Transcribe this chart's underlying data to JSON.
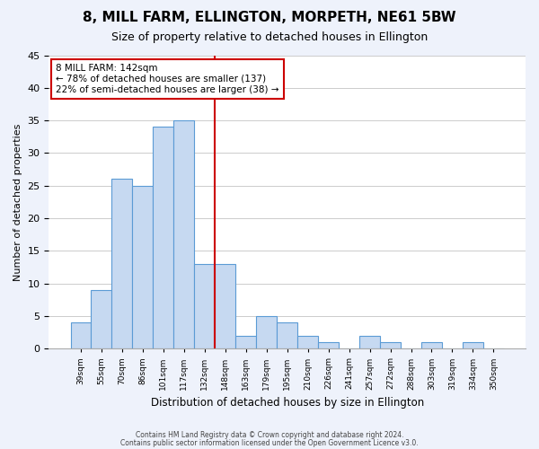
{
  "title": "8, MILL FARM, ELLINGTON, MORPETH, NE61 5BW",
  "subtitle": "Size of property relative to detached houses in Ellington",
  "xlabel": "Distribution of detached houses by size in Ellington",
  "ylabel": "Number of detached properties",
  "bar_labels": [
    "39sqm",
    "55sqm",
    "70sqm",
    "86sqm",
    "101sqm",
    "117sqm",
    "132sqm",
    "148sqm",
    "163sqm",
    "179sqm",
    "195sqm",
    "210sqm",
    "226sqm",
    "241sqm",
    "257sqm",
    "272sqm",
    "288sqm",
    "303sqm",
    "319sqm",
    "334sqm",
    "350sqm"
  ],
  "bar_values": [
    4,
    9,
    26,
    25,
    34,
    35,
    13,
    13,
    2,
    5,
    4,
    2,
    1,
    0,
    2,
    1,
    0,
    1,
    0,
    1,
    0
  ],
  "bar_color": "#c6d9f1",
  "bar_edge_color": "#5b9bd5",
  "vline_pos": 6.5,
  "vline_color": "#cc0000",
  "annotation_title": "8 MILL FARM: 142sqm",
  "annotation_line1": "← 78% of detached houses are smaller (137)",
  "annotation_line2": "22% of semi-detached houses are larger (38) →",
  "annotation_box_color": "#ffffff",
  "annotation_box_edge": "#cc0000",
  "ylim": [
    0,
    45
  ],
  "yticks": [
    0,
    5,
    10,
    15,
    20,
    25,
    30,
    35,
    40,
    45
  ],
  "footer1": "Contains HM Land Registry data © Crown copyright and database right 2024.",
  "footer2": "Contains public sector information licensed under the Open Government Licence v3.0.",
  "bg_color": "#eef2fb",
  "plot_bg_color": "#ffffff"
}
